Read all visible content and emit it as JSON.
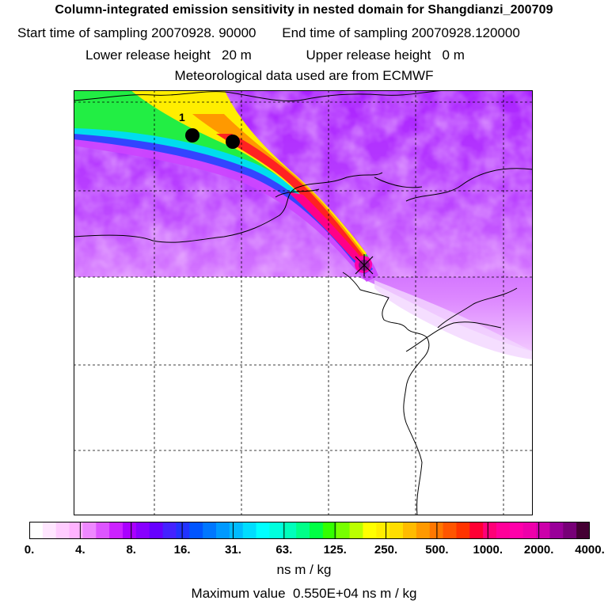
{
  "header": {
    "title": "Column-integrated emission sensitivity in nested domain for Shangdianzi_200709",
    "start_label": "Start time of sampling",
    "start_value": "20070928. 90000",
    "end_label": "End time of sampling",
    "end_value": "20070928.120000",
    "lower_label": "Lower release height",
    "lower_value": "20 m",
    "upper_label": "Upper release height",
    "upper_value": "0 m",
    "met_line": "Meteorological data used are from ECMWF"
  },
  "map": {
    "release_site_marker": "X",
    "cluster_label": "1",
    "cluster_count": 2
  },
  "colorbar": {
    "ticks": [
      "0.",
      "4.",
      "8.",
      "16.",
      "31.",
      "63.",
      "125.",
      "250.",
      "500.",
      "1000.",
      "2000.",
      "4000."
    ],
    "colors": [
      "#ffffff",
      "#ffe6ff",
      "#ffccff",
      "#ffb3ff",
      "#ee88ff",
      "#dd55ff",
      "#cc22ff",
      "#aa00ff",
      "#8800ff",
      "#6600ff",
      "#4422ff",
      "#2233ff",
      "#0055ff",
      "#0077ff",
      "#0099ff",
      "#00bbff",
      "#00ddff",
      "#00ffff",
      "#00ffdd",
      "#00ffbb",
      "#00ff88",
      "#00ff44",
      "#33ff00",
      "#77ff00",
      "#bbff00",
      "#ffff00",
      "#ffee00",
      "#ffdd00",
      "#ffbb00",
      "#ff9900",
      "#ff7700",
      "#ff5500",
      "#ff3300",
      "#ff0033",
      "#ff0077",
      "#ff0099",
      "#ff00aa",
      "#ee00aa",
      "#cc00aa",
      "#990099",
      "#770077",
      "#440033"
    ],
    "units": "ns m / kg",
    "max_label": "Maximum value",
    "max_value": "0.550E+04",
    "max_units": "ns m / kg"
  }
}
